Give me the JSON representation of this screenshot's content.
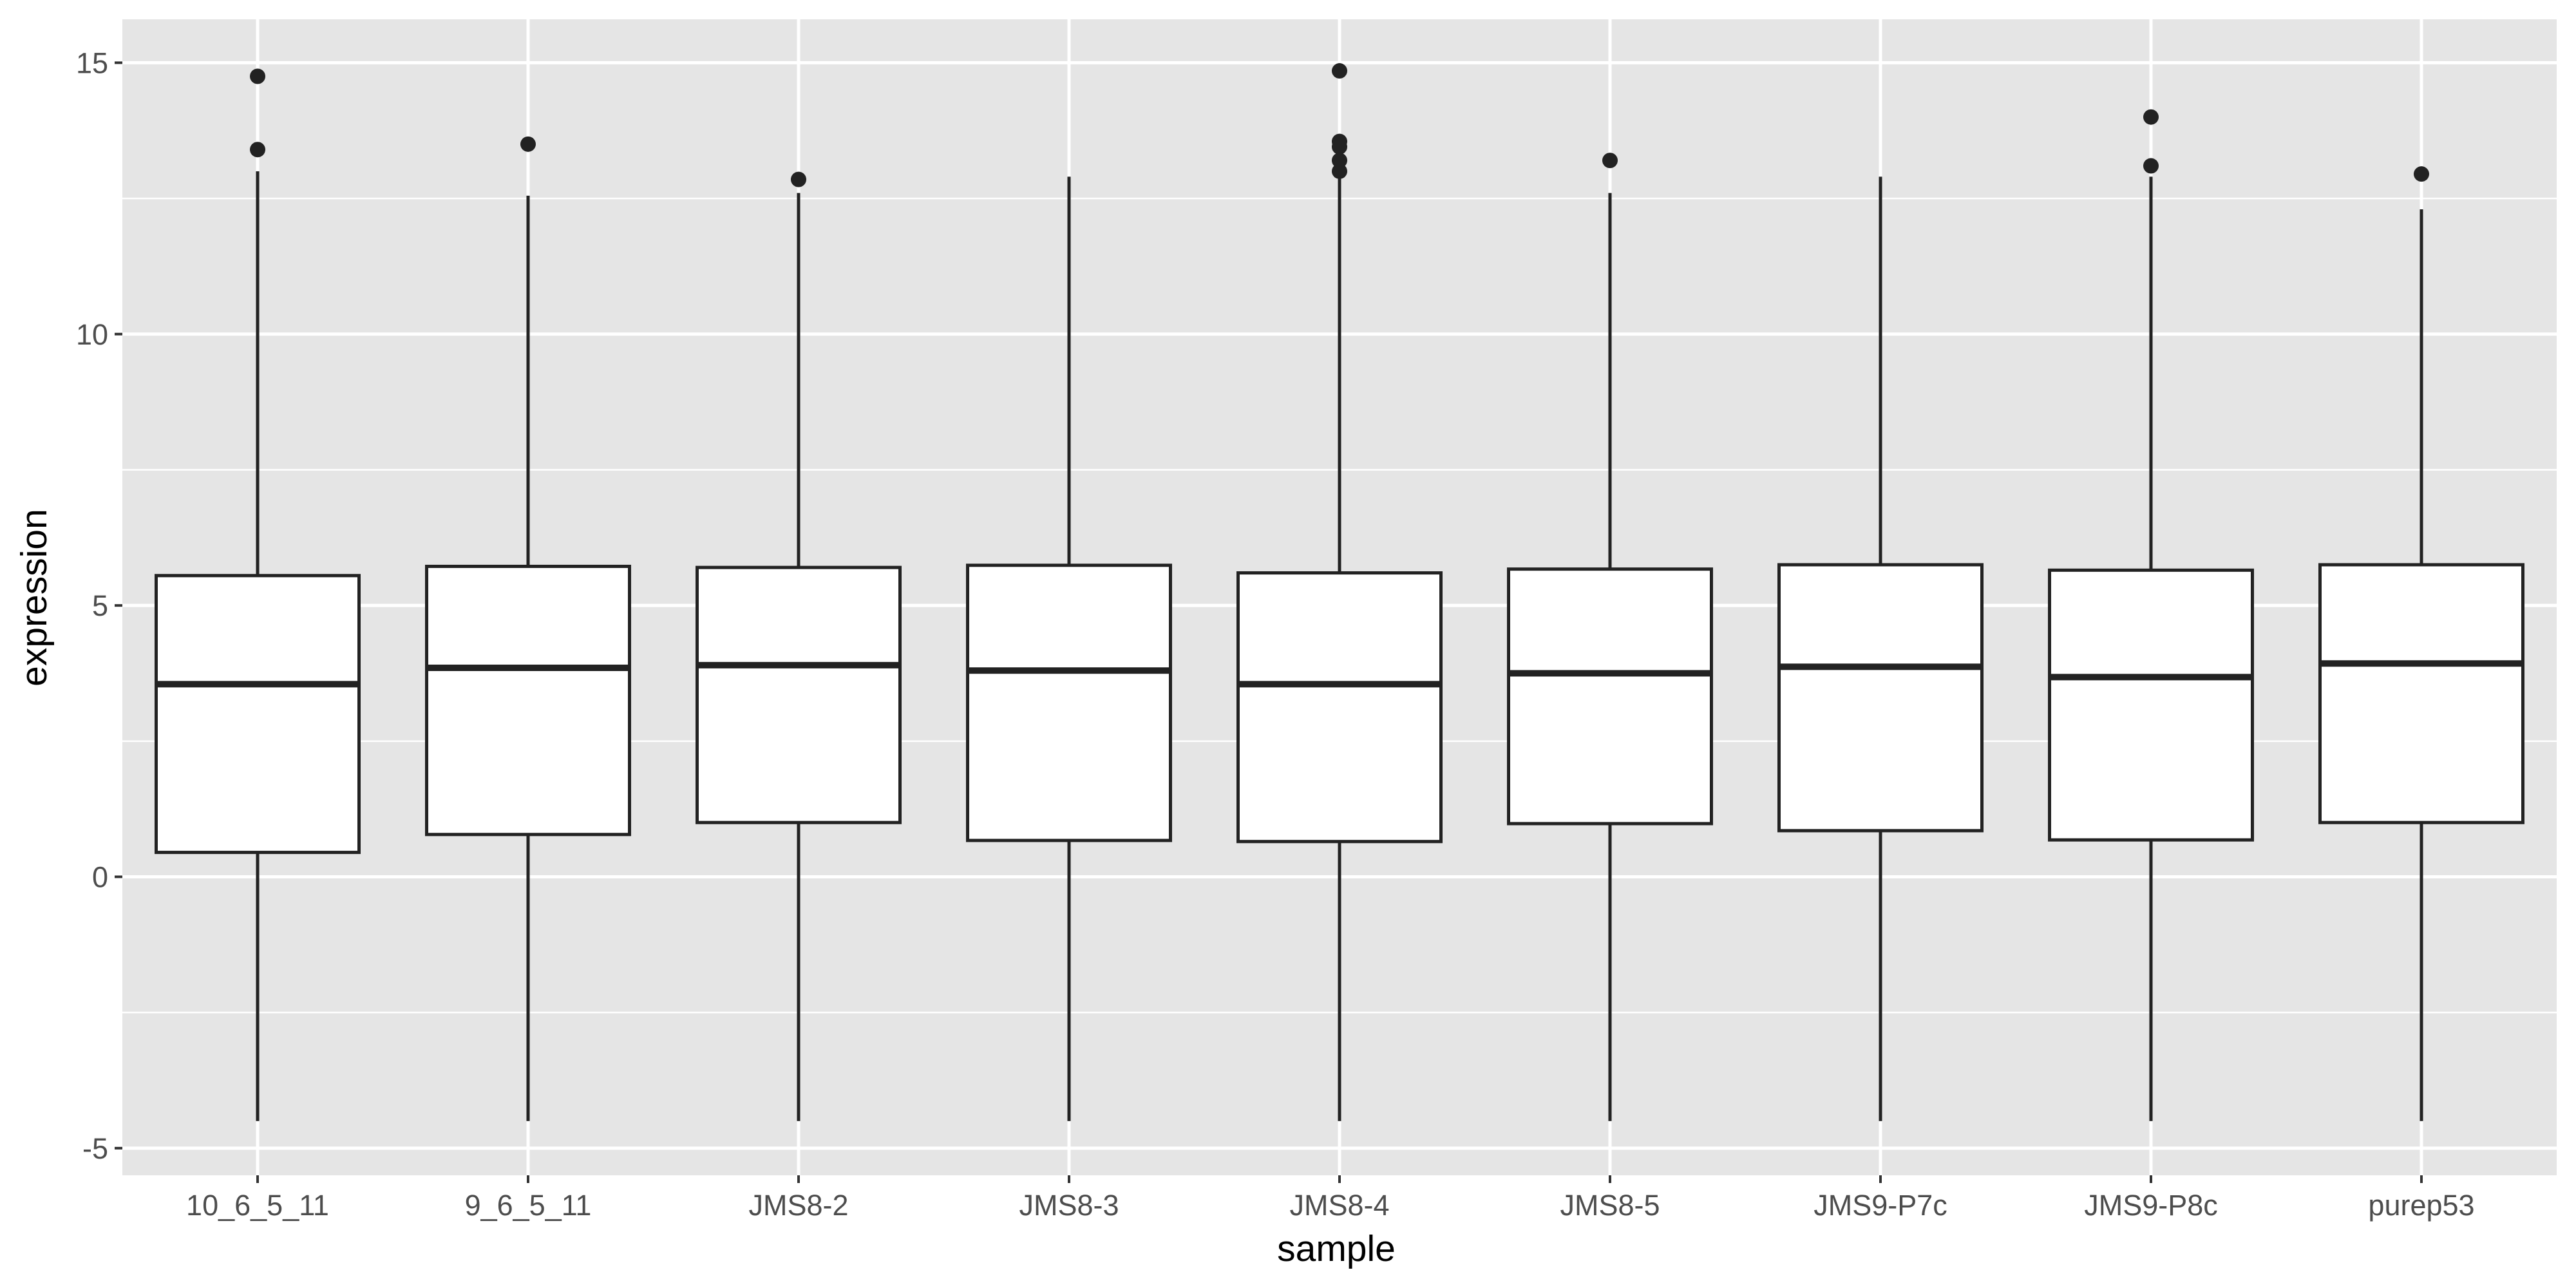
{
  "chart_data": {
    "type": "boxplot",
    "title": "",
    "xlabel": "sample",
    "ylabel": "expression",
    "ylim": [
      -5.5,
      15.8
    ],
    "yticks": [
      -5,
      0,
      5,
      10,
      15
    ],
    "ytick_labels": [
      "-5",
      "0",
      "5",
      "10",
      "15"
    ],
    "grid": true,
    "legend": "none",
    "colors": {
      "panel": "#e5e5e5",
      "grid": "#ffffff",
      "box_fill": "#ffffff",
      "line": "#222222",
      "outlier": "#222222"
    },
    "categories": [
      "10_6_5_11",
      "9_6_5_11",
      "JMS8-2",
      "JMS8-3",
      "JMS8-4",
      "JMS8-5",
      "JMS9-P7c",
      "JMS9-P8c",
      "purep53"
    ],
    "boxes": [
      {
        "category": "10_6_5_11",
        "whisker_low": -4.5,
        "q1": 0.45,
        "median": 3.55,
        "q3": 5.55,
        "whisker_high": 13.0,
        "outliers": [
          13.4,
          14.75
        ]
      },
      {
        "category": "9_6_5_11",
        "whisker_low": -4.5,
        "q1": 0.78,
        "median": 3.85,
        "q3": 5.72,
        "whisker_high": 12.55,
        "outliers": [
          13.5
        ]
      },
      {
        "category": "JMS8-2",
        "whisker_low": -4.5,
        "q1": 1.0,
        "median": 3.9,
        "q3": 5.7,
        "whisker_high": 12.6,
        "outliers": [
          12.85
        ]
      },
      {
        "category": "JMS8-3",
        "whisker_low": -4.5,
        "q1": 0.67,
        "median": 3.8,
        "q3": 5.74,
        "whisker_high": 12.9,
        "outliers": []
      },
      {
        "category": "JMS8-4",
        "whisker_low": -4.5,
        "q1": 0.65,
        "median": 3.55,
        "q3": 5.6,
        "whisker_high": 12.9,
        "outliers": [
          13.0,
          13.2,
          13.45,
          13.55,
          14.85
        ]
      },
      {
        "category": "JMS8-5",
        "whisker_low": -4.5,
        "q1": 0.98,
        "median": 3.75,
        "q3": 5.67,
        "whisker_high": 12.6,
        "outliers": [
          13.2
        ]
      },
      {
        "category": "JMS9-P7c",
        "whisker_low": -4.5,
        "q1": 0.85,
        "median": 3.87,
        "q3": 5.75,
        "whisker_high": 12.9,
        "outliers": []
      },
      {
        "category": "JMS9-P8c",
        "whisker_low": -4.5,
        "q1": 0.68,
        "median": 3.68,
        "q3": 5.65,
        "whisker_high": 12.9,
        "outliers": [
          13.1,
          14.0
        ]
      },
      {
        "category": "purep53",
        "whisker_low": -4.5,
        "q1": 1.0,
        "median": 3.93,
        "q3": 5.75,
        "whisker_high": 12.3,
        "outliers": [
          12.95
        ]
      }
    ]
  }
}
